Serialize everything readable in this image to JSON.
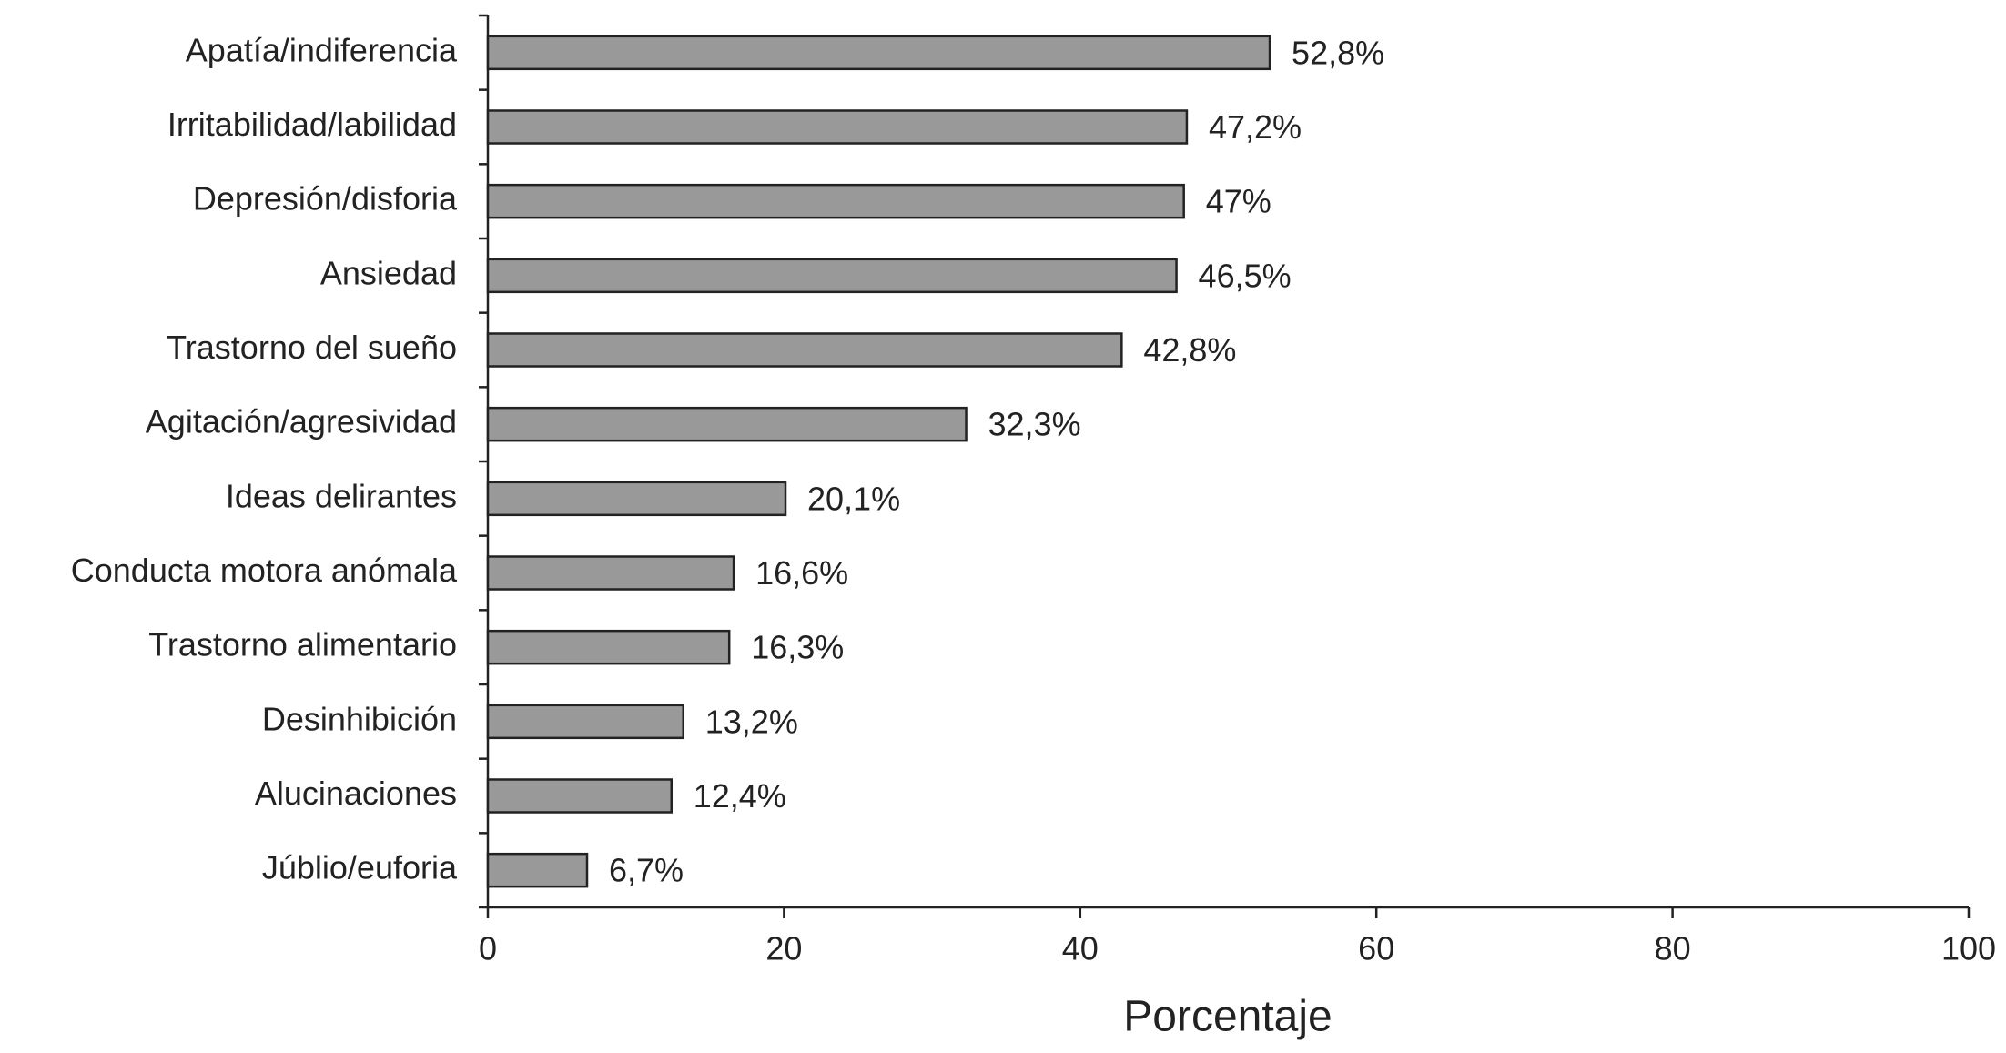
{
  "chart_data": {
    "type": "bar",
    "orientation": "horizontal",
    "x_label": "Porcentaje",
    "categories": [
      "Apatía/indiferencia",
      "Irritabilidad/labilidad",
      "Depresión/disforia",
      "Ansiedad",
      "Trastorno del sueño",
      "Agitación/agresividad",
      "Ideas delirantes",
      "Conducta motora anómala",
      "Trastorno alimentario",
      "Desinhibición",
      "Alucinaciones",
      "Júblio/euforia"
    ],
    "values": [
      52.8,
      47.2,
      47,
      46.5,
      42.8,
      32.3,
      20.1,
      16.6,
      16.3,
      13.2,
      12.4,
      6.7
    ],
    "value_labels": [
      "52,8%",
      "47,2%",
      "47%",
      "46,5%",
      "42,8%",
      "32,3%",
      "20,1%",
      "16,6%",
      "16,3%",
      "13,2%",
      "12,4%",
      "6,7%"
    ],
    "color": "#999999",
    "xlim": [
      0,
      100
    ],
    "xticks": [
      0,
      20,
      40,
      60,
      80,
      100
    ]
  }
}
